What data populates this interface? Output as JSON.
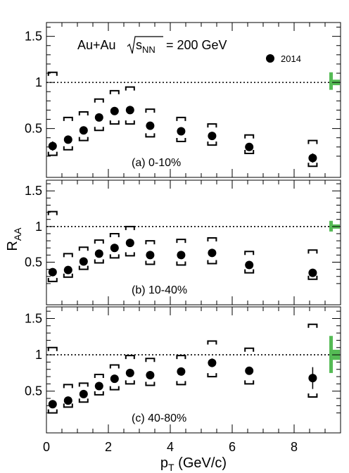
{
  "chart_data": {
    "type": "scatter",
    "header": {
      "system": "Au+Au",
      "sqrt": "s",
      "sqrt_sub": "NN",
      "energy": "= 200 GeV"
    },
    "legend": [
      {
        "label": "2014",
        "marker": "filled-circle"
      }
    ],
    "xlabel": {
      "main": "p",
      "sub": "T",
      "rest": " (GeV/c)"
    },
    "ylabel": {
      "main": "R",
      "sub": "AA"
    },
    "xlim": [
      0,
      9.5
    ],
    "ylim": [
      0.1,
      1.65
    ],
    "x_ticks": [
      "0",
      "2",
      "4",
      "6",
      "8"
    ],
    "y_ticks": [
      "0.5",
      "1",
      "1.5"
    ],
    "reference_line": 1,
    "grid": false,
    "colors": {
      "marker": "#000000",
      "normalization_box": "#55bb55"
    },
    "panels": [
      {
        "label": "(a)  0-10%",
        "points": [
          {
            "x": 0.2,
            "y": 0.31,
            "stat": 0.05,
            "sys_low": 0.21,
            "sys_high": 1.11
          },
          {
            "x": 0.7,
            "y": 0.38,
            "stat": 0.03,
            "sys_low": 0.27,
            "sys_high": 0.62
          },
          {
            "x": 1.2,
            "y": 0.48,
            "stat": 0.03,
            "sys_low": 0.37,
            "sys_high": 0.68
          },
          {
            "x": 1.7,
            "y": 0.62,
            "stat": 0.03,
            "sys_low": 0.48,
            "sys_high": 0.82
          },
          {
            "x": 2.2,
            "y": 0.69,
            "stat": 0.03,
            "sys_low": 0.55,
            "sys_high": 0.91
          },
          {
            "x": 2.7,
            "y": 0.7,
            "stat": 0.03,
            "sys_low": 0.55,
            "sys_high": 0.95
          },
          {
            "x": 3.35,
            "y": 0.53,
            "stat": 0.03,
            "sys_low": 0.41,
            "sys_high": 0.71
          },
          {
            "x": 4.35,
            "y": 0.47,
            "stat": 0.03,
            "sys_low": 0.36,
            "sys_high": 0.62
          },
          {
            "x": 5.35,
            "y": 0.42,
            "stat": 0.03,
            "sys_low": 0.32,
            "sys_high": 0.55
          },
          {
            "x": 6.55,
            "y": 0.3,
            "stat": 0.03,
            "sys_low": 0.23,
            "sys_high": 0.43
          },
          {
            "x": 8.6,
            "y": 0.18,
            "stat": 0.05,
            "sys_low": 0.09,
            "sys_high": 0.37
          }
        ],
        "norm": {
          "global": [
            0.97,
            1.03
          ],
          "centrality": [
            0.92,
            1.11
          ]
        }
      },
      {
        "label": "(b)  10-40%",
        "points": [
          {
            "x": 0.2,
            "y": 0.36,
            "stat": 0.03,
            "sys_low": 0.23,
            "sys_high": 1.21
          },
          {
            "x": 0.7,
            "y": 0.39,
            "stat": 0.03,
            "sys_low": 0.29,
            "sys_high": 0.62
          },
          {
            "x": 1.2,
            "y": 0.51,
            "stat": 0.03,
            "sys_low": 0.4,
            "sys_high": 0.71
          },
          {
            "x": 1.7,
            "y": 0.62,
            "stat": 0.03,
            "sys_low": 0.49,
            "sys_high": 0.81
          },
          {
            "x": 2.2,
            "y": 0.7,
            "stat": 0.03,
            "sys_low": 0.56,
            "sys_high": 0.9
          },
          {
            "x": 2.7,
            "y": 0.77,
            "stat": 0.03,
            "sys_low": 0.59,
            "sys_high": 1.0
          },
          {
            "x": 3.35,
            "y": 0.6,
            "stat": 0.03,
            "sys_low": 0.47,
            "sys_high": 0.8
          },
          {
            "x": 4.35,
            "y": 0.6,
            "stat": 0.03,
            "sys_low": 0.46,
            "sys_high": 0.82
          },
          {
            "x": 5.35,
            "y": 0.63,
            "stat": 0.03,
            "sys_low": 0.48,
            "sys_high": 0.84
          },
          {
            "x": 6.55,
            "y": 0.46,
            "stat": 0.03,
            "sys_low": 0.35,
            "sys_high": 0.65
          },
          {
            "x": 8.6,
            "y": 0.35,
            "stat": 0.03,
            "sys_low": 0.26,
            "sys_high": 0.67
          }
        ],
        "norm": {
          "global": [
            0.97,
            1.03
          ],
          "centrality": [
            0.93,
            1.08
          ]
        }
      },
      {
        "label": "(c)  40-80%",
        "points": [
          {
            "x": 0.2,
            "y": 0.32,
            "stat": 0.03,
            "sys_low": 0.2,
            "sys_high": 1.1
          },
          {
            "x": 0.7,
            "y": 0.37,
            "stat": 0.03,
            "sys_low": 0.28,
            "sys_high": 0.59
          },
          {
            "x": 1.2,
            "y": 0.46,
            "stat": 0.03,
            "sys_low": 0.35,
            "sys_high": 0.61
          },
          {
            "x": 1.7,
            "y": 0.57,
            "stat": 0.03,
            "sys_low": 0.45,
            "sys_high": 0.73
          },
          {
            "x": 2.2,
            "y": 0.67,
            "stat": 0.03,
            "sys_low": 0.52,
            "sys_high": 0.86
          },
          {
            "x": 2.7,
            "y": 0.75,
            "stat": 0.03,
            "sys_low": 0.6,
            "sys_high": 0.99
          },
          {
            "x": 3.35,
            "y": 0.72,
            "stat": 0.03,
            "sys_low": 0.58,
            "sys_high": 0.95
          },
          {
            "x": 4.35,
            "y": 0.77,
            "stat": 0.03,
            "sys_low": 0.59,
            "sys_high": 0.99
          },
          {
            "x": 5.35,
            "y": 0.89,
            "stat": 0.06,
            "sys_low": 0.7,
            "sys_high": 1.19
          },
          {
            "x": 6.55,
            "y": 0.78,
            "stat": 0.05,
            "sys_low": 0.6,
            "sys_high": 1.09
          },
          {
            "x": 8.6,
            "y": 0.68,
            "stat": 0.15,
            "sys_low": 0.42,
            "sys_high": 1.42
          }
        ],
        "norm": {
          "global": [
            0.93,
            1.07
          ],
          "centrality": [
            0.75,
            1.26
          ]
        }
      }
    ]
  }
}
